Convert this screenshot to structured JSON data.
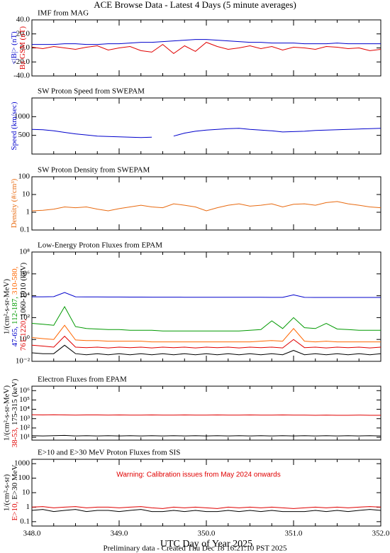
{
  "title": "ACE Browse Data - Latest 4 Days (5 minute averages)",
  "footer": "Preliminary data - Created Thu Dec 18 16:21:10 PST 2025",
  "chart_data": [
    {
      "type": "line",
      "title": "IMF from MAG",
      "ylim": [
        -40,
        40
      ],
      "yticks": [
        {
          "value": -40,
          "label": "-40.0"
        },
        {
          "value": -20,
          "label": "-20.0"
        },
        {
          "value": 0,
          "label": "0.0"
        },
        {
          "value": 20,
          "label": "20.0"
        },
        {
          "value": 40,
          "label": "40.0"
        }
      ],
      "xlim": [
        348,
        352
      ],
      "xticks": [
        348,
        349,
        350,
        351,
        352
      ],
      "x": [
        348,
        348.125,
        348.25,
        348.375,
        348.5,
        348.625,
        348.75,
        348.875,
        349,
        349.125,
        349.25,
        349.375,
        349.5,
        349.625,
        349.75,
        349.875,
        350,
        350.125,
        350.25,
        350.375,
        350.5,
        350.625,
        350.75,
        350.875,
        351,
        351.125,
        351.25,
        351.375,
        351.5,
        351.625,
        351.75,
        351.875,
        352
      ],
      "series": [
        {
          "name": "<|B|> (nT)",
          "color": "#0000cc",
          "values": [
            5,
            5,
            5,
            6,
            6,
            5,
            5,
            6,
            6,
            7,
            8,
            8,
            9,
            10,
            11,
            12,
            12,
            11,
            10,
            9,
            8,
            8,
            7,
            7,
            7,
            6,
            6,
            6,
            7,
            6,
            6,
            6,
            6
          ]
        },
        {
          "name": "Bz GSM (nT)",
          "color": "#e00000",
          "values": [
            1,
            -1,
            2,
            0,
            -2,
            1,
            3,
            -3,
            0,
            2,
            -4,
            -6,
            5,
            -8,
            3,
            -5,
            8,
            2,
            -2,
            0,
            3,
            -1,
            2,
            -3,
            1,
            0,
            -2,
            2,
            1,
            -1,
            0,
            -4,
            -2
          ]
        }
      ]
    },
    {
      "type": "line",
      "title": "SW Proton Speed from SWEPAM",
      "ylim": [
        0,
        1500
      ],
      "yticks": [
        500,
        1000
      ],
      "xlim": [
        348,
        352
      ],
      "xticks": [
        348,
        349,
        350,
        351,
        352
      ],
      "x": [
        348,
        348.125,
        348.25,
        348.375,
        348.5,
        348.625,
        348.75,
        348.875,
        349,
        349.125,
        349.25,
        349.375,
        349.5,
        349.625,
        349.75,
        349.875,
        350,
        350.125,
        350.25,
        350.375,
        350.5,
        350.625,
        350.75,
        350.875,
        351,
        351.125,
        351.25,
        351.375,
        351.5,
        351.625,
        351.75,
        351.875,
        352
      ],
      "series": [
        {
          "name": "Speed (km/sec)",
          "color": "#0000cc",
          "values": [
            660,
            650,
            620,
            580,
            540,
            510,
            480,
            470,
            460,
            450,
            440,
            450,
            null,
            480,
            560,
            610,
            640,
            660,
            680,
            690,
            660,
            640,
            620,
            590,
            600,
            610,
            630,
            640,
            650,
            660,
            670,
            680,
            690
          ]
        }
      ]
    },
    {
      "type": "line",
      "title": "SW Proton Density from SWEPAM",
      "ylog": true,
      "ylim": [
        0.1,
        100
      ],
      "yticks": [
        0.1,
        1,
        10,
        100
      ],
      "xlim": [
        348,
        352
      ],
      "xticks": [
        348,
        349,
        350,
        351,
        352
      ],
      "x": [
        348,
        348.125,
        348.25,
        348.375,
        348.5,
        348.625,
        348.75,
        348.875,
        349,
        349.125,
        349.25,
        349.375,
        349.5,
        349.625,
        349.75,
        349.875,
        350,
        350.125,
        350.25,
        350.375,
        350.5,
        350.625,
        350.75,
        350.875,
        351,
        351.125,
        351.25,
        351.375,
        351.5,
        351.625,
        351.75,
        351.875,
        352
      ],
      "series": [
        {
          "name": "Density (#/cm³)",
          "color": "#e86a10",
          "values": [
            1.2,
            1.3,
            1.5,
            2,
            1.8,
            2,
            1.5,
            1.2,
            1.6,
            2,
            2.5,
            2,
            1.8,
            3,
            2.5,
            2,
            1.2,
            1.8,
            2.5,
            3,
            2.2,
            2.5,
            3,
            2,
            2.8,
            3,
            2.5,
            3.5,
            4,
            3,
            2.5,
            2,
            1.8
          ]
        }
      ]
    },
    {
      "type": "line",
      "title": "Low-Energy Proton Fluxes from EPAM",
      "ylog": true,
      "ylim": [
        0.01,
        100000000
      ],
      "ylabel": "1/(cm²-s-sr-MeV)",
      "yunit": "(keV)",
      "yticks": [
        {
          "value": 0.01,
          "label": "10⁻²"
        },
        {
          "value": 1,
          "label": "10⁰"
        },
        {
          "value": 100,
          "label": "10²"
        },
        {
          "value": 10000,
          "label": "10⁴"
        },
        {
          "value": 1000000,
          "label": "10⁶"
        },
        {
          "value": 100000000,
          "label": "10⁸"
        }
      ],
      "xlim": [
        348,
        352
      ],
      "xticks": [
        348,
        349,
        350,
        351,
        352
      ],
      "x": [
        348,
        348.125,
        348.25,
        348.375,
        348.5,
        348.625,
        348.75,
        348.875,
        349,
        349.125,
        349.25,
        349.375,
        349.5,
        349.625,
        349.75,
        349.875,
        350,
        350.125,
        350.25,
        350.375,
        350.5,
        350.625,
        350.75,
        350.875,
        351,
        351.125,
        351.25,
        351.375,
        351.5,
        351.625,
        351.75,
        351.875,
        352
      ],
      "series": [
        {
          "name": "47-65,",
          "color": "#0000cc",
          "values": [
            8000,
            8000,
            8200,
            20000,
            8000,
            7800,
            7800,
            7600,
            7600,
            7500,
            7500,
            7400,
            7400,
            7400,
            7300,
            7300,
            7300,
            7200,
            7200,
            7200,
            7200,
            7200,
            7100,
            7100,
            12000,
            7100,
            7000,
            7000,
            7000,
            7000,
            7000,
            7000,
            7000
          ]
        },
        {
          "name": "112-187,",
          "color": "#009900",
          "values": [
            30,
            25,
            20,
            1000,
            15,
            10,
            9,
            8,
            8,
            7,
            7,
            7,
            6,
            6,
            6,
            6,
            6,
            6,
            6,
            6,
            7,
            8,
            50,
            10,
            100,
            12,
            10,
            30,
            9,
            8,
            7,
            7,
            7
          ]
        },
        {
          "name": "310-580,",
          "color": "#ff6600",
          "values": [
            1.5,
            1.2,
            1,
            20,
            0.9,
            0.8,
            0.8,
            0.7,
            0.7,
            0.7,
            0.7,
            0.6,
            0.6,
            0.6,
            0.6,
            0.6,
            0.6,
            0.6,
            0.6,
            0.6,
            0.6,
            0.7,
            0.8,
            0.7,
            10,
            0.7,
            0.6,
            0.7,
            0.6,
            0.6,
            0.6,
            0.6,
            0.6
          ]
        },
        {
          "name": "761-1220,",
          "color": "#e00000",
          "values": [
            0.3,
            0.25,
            0.2,
            2,
            0.2,
            0.18,
            0.2,
            0.17,
            0.2,
            0.18,
            0.2,
            0.17,
            0.2,
            0.18,
            0.2,
            0.17,
            0.2,
            0.18,
            0.2,
            0.17,
            0.2,
            0.18,
            0.2,
            0.17,
            1,
            0.18,
            0.2,
            0.17,
            0.2,
            0.18,
            0.2,
            0.17,
            0.2
          ]
        },
        {
          "name": "1060-1910",
          "color": "#000000",
          "values": [
            0.06,
            0.05,
            0.05,
            0.3,
            0.05,
            0.04,
            0.05,
            0.04,
            0.05,
            0.04,
            0.05,
            0.04,
            0.05,
            0.04,
            0.05,
            0.04,
            0.05,
            0.04,
            0.05,
            0.04,
            0.05,
            0.04,
            0.05,
            0.04,
            0.1,
            0.04,
            0.05,
            0.04,
            0.05,
            0.04,
            0.05,
            0.04,
            0.05
          ]
        }
      ]
    },
    {
      "type": "line",
      "title": "Electron Fluxes from EPAM",
      "ylog": true,
      "ylim": [
        5,
        3000000
      ],
      "ylabel": "1/(cm²-s-sr-MeV)",
      "yunit": "(keV)",
      "yticks": [
        {
          "value": 10,
          "label": "10¹"
        },
        {
          "value": 100,
          "label": "10²"
        },
        {
          "value": 1000,
          "label": "10³"
        },
        {
          "value": 10000,
          "label": "10⁴"
        },
        {
          "value": 100000,
          "label": "10⁵"
        },
        {
          "value": 1000000,
          "label": "10⁶"
        }
      ],
      "xlim": [
        348,
        352
      ],
      "xticks": [
        348,
        349,
        350,
        351,
        352
      ],
      "x": [
        348,
        348.125,
        348.25,
        348.375,
        348.5,
        348.625,
        348.75,
        348.875,
        349,
        349.125,
        349.25,
        349.375,
        349.5,
        349.625,
        349.75,
        349.875,
        350,
        350.125,
        350.25,
        350.375,
        350.5,
        350.625,
        350.75,
        350.875,
        351,
        351.125,
        351.25,
        351.375,
        351.5,
        351.625,
        351.75,
        351.875,
        352
      ],
      "series": [
        {
          "name": "38-53,",
          "color": "#e00000",
          "values": [
            2600,
            2500,
            2600,
            2500,
            2400,
            2500,
            2500,
            2400,
            2500,
            2400,
            2400,
            2500,
            2400,
            2400,
            2500,
            2400,
            2400,
            2500,
            2400,
            2400,
            2500,
            2400,
            2400,
            2500,
            2400,
            2400,
            2300,
            2400,
            2300,
            2300,
            2400,
            2300,
            2300
          ]
        },
        {
          "name": "175-315",
          "color": "#000000",
          "values": [
            15,
            14,
            15,
            16,
            14,
            15,
            14,
            15,
            14,
            15,
            14,
            15,
            14,
            15,
            14,
            15,
            14,
            15,
            14,
            15,
            14,
            15,
            14,
            15,
            14,
            15,
            14,
            15,
            14,
            15,
            14,
            15,
            14
          ]
        }
      ]
    },
    {
      "type": "line",
      "title": "E>10 and E>30 MeV Proton Fluxes from SIS",
      "ylog": true,
      "ylim": [
        0.05,
        2000
      ],
      "ylabel": "1/(cm²-s-sr)",
      "yticks": [
        0.1,
        1,
        10,
        100,
        1000
      ],
      "annotation": "Warning: Calibration issues from May 2024 onwards",
      "xlabel": "UTC Day of Year 2025",
      "xlim": [
        348,
        352
      ],
      "xticks": [
        {
          "value": 348,
          "label": "348.0"
        },
        {
          "value": 349,
          "label": "349.0"
        },
        {
          "value": 350,
          "label": "350.0"
        },
        {
          "value": 351,
          "label": "351.0"
        },
        {
          "value": 352,
          "label": "352.0"
        }
      ],
      "x": [
        348,
        348.125,
        348.25,
        348.375,
        348.5,
        348.625,
        348.75,
        348.875,
        349,
        349.125,
        349.25,
        349.375,
        349.5,
        349.625,
        349.75,
        349.875,
        350,
        350.125,
        350.25,
        350.375,
        350.5,
        350.625,
        350.75,
        350.875,
        351,
        351.125,
        351.25,
        351.375,
        351.5,
        351.625,
        351.75,
        351.875,
        352
      ],
      "series": [
        {
          "name": "E>10,",
          "color": "#e00000",
          "values": [
            1,
            1.1,
            0.9,
            1,
            1.1,
            0.9,
            1,
            1,
            0.9,
            1,
            1.1,
            0.9,
            0.8,
            1,
            0.9,
            1,
            0.9,
            0.8,
            1,
            0.9,
            1,
            0.9,
            1,
            0.9,
            0.8,
            0.9,
            1,
            0.9,
            1,
            0.9,
            1,
            1.1,
            1
          ]
        },
        {
          "name": "E>30 MeV",
          "color": "#000000",
          "values": [
            0.6,
            0.7,
            0.5,
            0.6,
            0.7,
            0.5,
            0.6,
            0.6,
            0.5,
            0.6,
            0.7,
            0.5,
            0.5,
            0.6,
            0.5,
            0.6,
            0.5,
            0.5,
            0.6,
            0.5,
            0.6,
            0.5,
            0.6,
            0.5,
            0.5,
            0.5,
            0.6,
            0.5,
            0.6,
            0.5,
            0.6,
            0.7,
            0.6
          ]
        }
      ]
    }
  ]
}
